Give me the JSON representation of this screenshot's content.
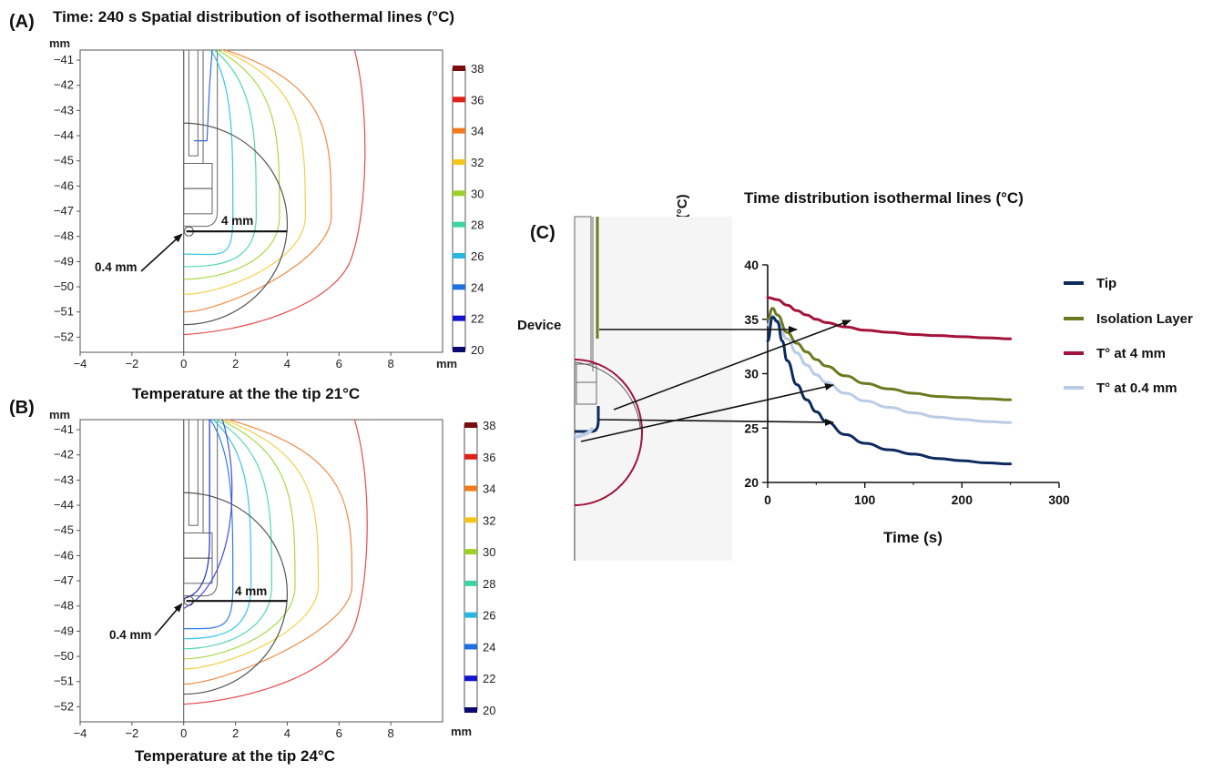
{
  "panel_a": {
    "letter": "(A)",
    "title": "Time: 240 s Spatial distribution of isothermal lines (°C)",
    "unit_y": "mm",
    "unit_x": "mm",
    "caption": "Temperature at the the tip 21°C",
    "annot_4mm": "4 mm",
    "annot_04mm": "0.4 mm"
  },
  "panel_b": {
    "letter": "(B)",
    "unit_y": "mm",
    "unit_x": "mm",
    "caption": "Temperature at the tip 24°C",
    "annot_4mm": "4 mm",
    "annot_04mm": "0.4 mm"
  },
  "panel_c": {
    "letter": "(C)",
    "title": "Time distribution isothermal lines (°C)",
    "device_label": "Device",
    "ylabel": "Temperature(°C)",
    "xlabel": "Time (s)"
  },
  "colors": {
    "tip": "#0d2a5e",
    "isolation": "#6b7a1e",
    "t4mm": "#a3123a",
    "t04mm": "#b9cbe6"
  },
  "chart_data": [
    {
      "type": "contour",
      "panel": "A",
      "title": "Time: 240 s Spatial distribution of isothermal lines (°C)",
      "xlabel": "mm",
      "ylabel": "mm",
      "xlim": [
        -4,
        10
      ],
      "ylim": [
        -52.6,
        -40.6
      ],
      "x_ticks": [
        -4,
        -2,
        0,
        2,
        4,
        6,
        8
      ],
      "y_ticks": [
        -41,
        -42,
        -43,
        -44,
        -45,
        -46,
        -47,
        -48,
        -49,
        -50,
        -51,
        -52
      ],
      "colorbar": {
        "ticks": [
          38,
          36,
          34,
          32,
          30,
          28,
          26,
          24,
          22,
          20
        ],
        "range": [
          20,
          38
        ]
      },
      "caption": "Temperature at the the tip 21°C"
    },
    {
      "type": "contour",
      "panel": "B",
      "xlabel": "mm",
      "ylabel": "mm",
      "xlim": [
        -4,
        10
      ],
      "ylim": [
        -52.6,
        -40.6
      ],
      "x_ticks": [
        -4,
        -2,
        0,
        2,
        4,
        6,
        8
      ],
      "y_ticks": [
        -41,
        -42,
        -43,
        -44,
        -45,
        -46,
        -47,
        -48,
        -49,
        -50,
        -51,
        -52
      ],
      "colorbar": {
        "ticks": [
          38,
          36,
          34,
          32,
          30,
          28,
          26,
          24,
          22,
          20
        ],
        "range": [
          20,
          38
        ]
      },
      "caption": "Temperature at the tip 24°C"
    },
    {
      "type": "line",
      "panel": "C",
      "title": "Time distribution isothermal lines (°C)",
      "xlabel": "Time (s)",
      "ylabel": "Temperature(°C)",
      "xlim": [
        0,
        300
      ],
      "ylim": [
        20,
        40
      ],
      "x_ticks": [
        0,
        100,
        200,
        300
      ],
      "y_ticks": [
        20,
        25,
        30,
        35,
        40
      ],
      "legend_position": "right",
      "series": [
        {
          "name": "Tip",
          "color": "#0d2a5e",
          "x": [
            0,
            5,
            10,
            15,
            20,
            30,
            40,
            50,
            60,
            80,
            100,
            125,
            150,
            175,
            200,
            225,
            250
          ],
          "y": [
            33.0,
            35.2,
            34.8,
            33.0,
            31.2,
            29.0,
            27.6,
            26.5,
            25.6,
            24.4,
            23.6,
            23.0,
            22.6,
            22.2,
            22.0,
            21.8,
            21.7
          ]
        },
        {
          "name": "Isolation Layer",
          "color": "#6b7a1e",
          "x": [
            0,
            5,
            10,
            20,
            30,
            40,
            50,
            60,
            80,
            100,
            125,
            150,
            175,
            200,
            225,
            250
          ],
          "y": [
            35.0,
            36.0,
            35.4,
            33.8,
            32.8,
            32.0,
            31.3,
            30.7,
            29.8,
            29.1,
            28.6,
            28.2,
            27.9,
            27.8,
            27.7,
            27.6
          ]
        },
        {
          "name": "T° at 4 mm",
          "color": "#a3123a",
          "x": [
            0,
            10,
            20,
            30,
            40,
            50,
            60,
            80,
            100,
            125,
            150,
            175,
            200,
            225,
            250
          ],
          "y": [
            37.0,
            36.8,
            36.3,
            35.8,
            35.4,
            35.0,
            34.7,
            34.3,
            34.0,
            33.8,
            33.6,
            33.5,
            33.4,
            33.3,
            33.2
          ]
        },
        {
          "name": "T° at 0.4 mm",
          "color": "#b9cbe6",
          "x": [
            0,
            5,
            10,
            20,
            30,
            40,
            50,
            60,
            80,
            100,
            125,
            150,
            175,
            200,
            225,
            250
          ],
          "y": [
            34.5,
            35.3,
            34.7,
            33.2,
            31.9,
            30.8,
            29.9,
            29.2,
            28.2,
            27.5,
            26.9,
            26.4,
            26.0,
            25.8,
            25.6,
            25.5
          ]
        }
      ]
    }
  ]
}
